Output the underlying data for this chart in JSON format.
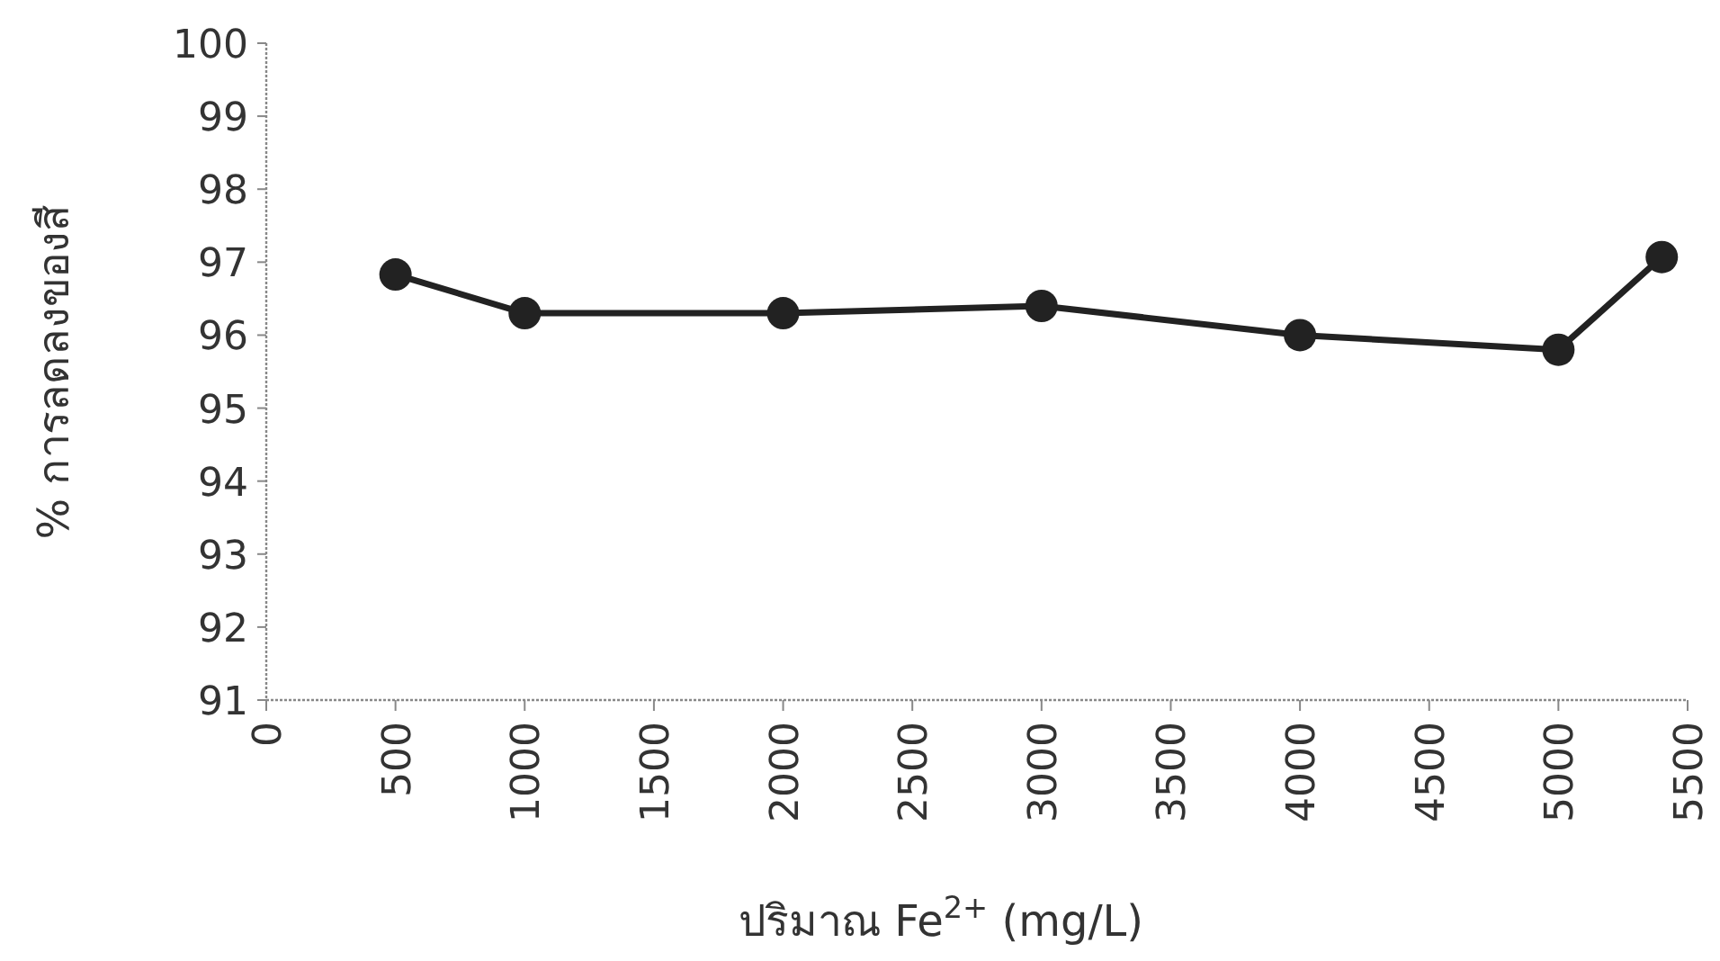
{
  "chart_data": {
    "type": "line",
    "xlabel": "ปริมาณ Fe$^{2+}$ (mg/L)",
    "ylabel": "% การลดลงของสี",
    "x": [
      500,
      1000,
      2000,
      3000,
      4000,
      5000,
      5400
    ],
    "series": [
      {
        "color": "#222222",
        "values": [
          96.83,
          96.3,
          96.3,
          96.4,
          96.0,
          95.8,
          97.07
        ]
      }
    ],
    "xlim": [
      0,
      5500
    ],
    "xticks": [
      0,
      500,
      1000,
      1500,
      2000,
      2500,
      3000,
      3500,
      4000,
      4500,
      5000,
      5500
    ],
    "ylim": [
      91,
      100
    ],
    "yticks": [
      91,
      92,
      93,
      94,
      95,
      96,
      97,
      98,
      99,
      100
    ],
    "grid": false,
    "marker": "circle",
    "line_style": "solid"
  }
}
